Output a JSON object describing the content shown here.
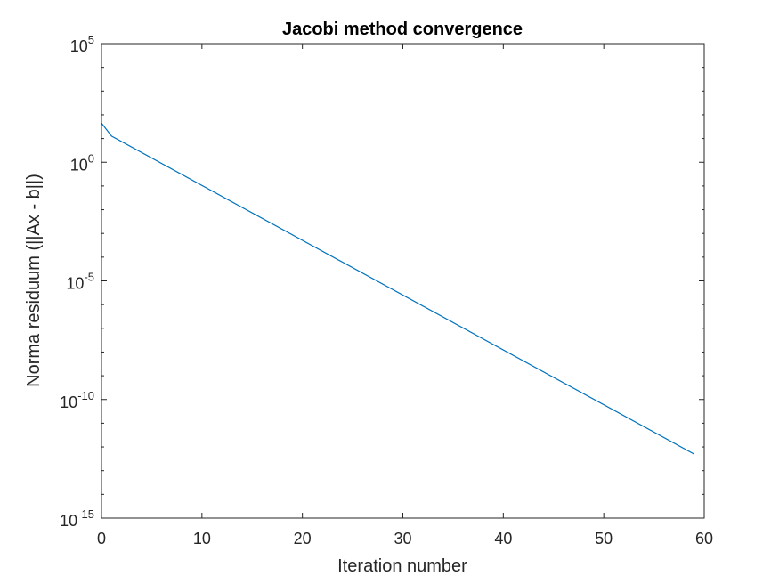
{
  "chart_data": {
    "type": "line",
    "title": "Jacobi method convergence",
    "xlabel": "Iteration number",
    "ylabel": "Norma residuum (||Ax - b||)",
    "xlim": [
      0,
      60
    ],
    "ylim": [
      1e-15,
      100000
    ],
    "yscale": "log",
    "grid": false,
    "x_ticks": [
      0,
      10,
      20,
      30,
      40,
      50,
      60
    ],
    "x_tick_labels": [
      "0",
      "10",
      "20",
      "30",
      "40",
      "50",
      "60"
    ],
    "y_ticks": [
      {
        "base": "10",
        "exp": "-15",
        "value": 1e-15
      },
      {
        "base": "10",
        "exp": "-10",
        "value": 1e-10
      },
      {
        "base": "10",
        "exp": "-5",
        "value": 1e-05
      },
      {
        "base": "10",
        "exp": "0",
        "value": 1
      },
      {
        "base": "10",
        "exp": "5",
        "value": 100000
      }
    ],
    "series": [
      {
        "color": "#0072bd",
        "x": [
          0,
          1,
          59
        ],
        "y": [
          44.7,
          12.6,
          5e-13
        ]
      }
    ]
  }
}
